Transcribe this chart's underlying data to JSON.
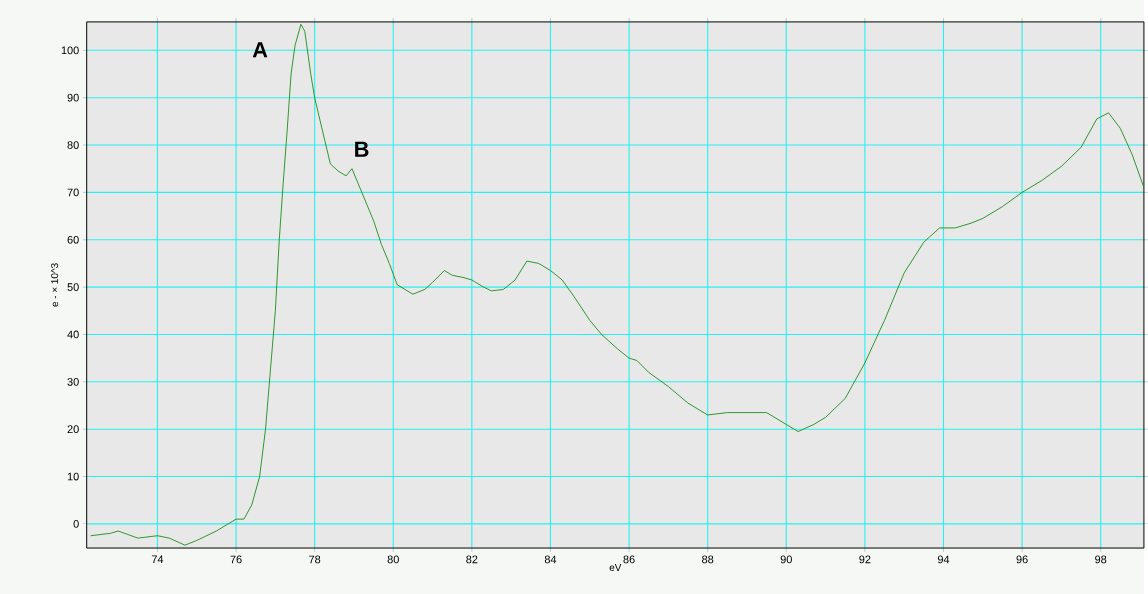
{
  "chart_data": {
    "type": "line",
    "xlabel": "eV",
    "ylabel": "e - × 10^3",
    "x": [
      72.3,
      72.8,
      73.0,
      73.5,
      74.0,
      74.3,
      74.7,
      75.0,
      75.5,
      75.8,
      76.0,
      76.2,
      76.4,
      76.6,
      76.75,
      76.9,
      77.0,
      77.1,
      77.2,
      77.3,
      77.4,
      77.5,
      77.65,
      77.75,
      77.9,
      78.0,
      78.2,
      78.4,
      78.6,
      78.8,
      78.95,
      79.1,
      79.3,
      79.5,
      79.7,
      79.9,
      80.1,
      80.3,
      80.5,
      80.8,
      81.0,
      81.3,
      81.5,
      81.8,
      82.0,
      82.3,
      82.5,
      82.8,
      83.1,
      83.4,
      83.7,
      84.0,
      84.3,
      84.6,
      85.0,
      85.3,
      85.7,
      86.0,
      86.2,
      86.5,
      87.0,
      87.5,
      88.0,
      88.5,
      89.0,
      89.5,
      90.0,
      90.3,
      90.7,
      91.0,
      91.5,
      92.0,
      92.5,
      93.0,
      93.5,
      93.9,
      94.3,
      94.7,
      95.0,
      95.5,
      96.0,
      96.5,
      97.0,
      97.5,
      97.9,
      98.2,
      98.5,
      98.8,
      99.1
    ],
    "series": [
      {
        "color": "#1a8c1a",
        "values": [
          -2.5,
          -2,
          -1.5,
          -3,
          -2.5,
          -3,
          -4.5,
          -3.5,
          -1.5,
          0,
          1,
          1,
          4,
          10,
          20,
          35,
          45,
          60,
          72,
          83,
          95,
          101,
          105.5,
          104,
          95,
          90,
          83,
          76,
          74.5,
          73.5,
          75,
          72,
          68,
          64,
          59,
          55,
          50.5,
          49.5,
          48.5,
          49.5,
          51,
          53.5,
          52.5,
          52,
          51.5,
          50,
          49.2,
          49.5,
          51.5,
          55.5,
          55,
          53.5,
          51.5,
          48,
          43,
          40,
          37,
          35,
          34.5,
          32,
          29,
          25.5,
          23,
          23.5,
          23.5,
          23.5,
          21,
          19.5,
          21,
          22.5,
          26.5,
          34,
          43,
          53,
          59.5,
          62.5,
          62.5,
          63.5,
          64.5,
          67,
          70,
          72.5,
          75.5,
          79.5,
          85.5,
          86.8,
          83.5,
          78,
          71
        ]
      }
    ],
    "xlim": [
      72.2,
      99.1
    ],
    "ylim": [
      -5.1,
      106
    ],
    "xticks": [
      74,
      76,
      78,
      80,
      82,
      84,
      86,
      88,
      90,
      92,
      94,
      96,
      98
    ],
    "yticks": [
      0,
      10,
      20,
      30,
      40,
      50,
      60,
      70,
      80,
      90,
      100
    ],
    "grid": true,
    "line_style": "solid",
    "marker": "none",
    "annotations": [
      "A",
      "B"
    ]
  }
}
